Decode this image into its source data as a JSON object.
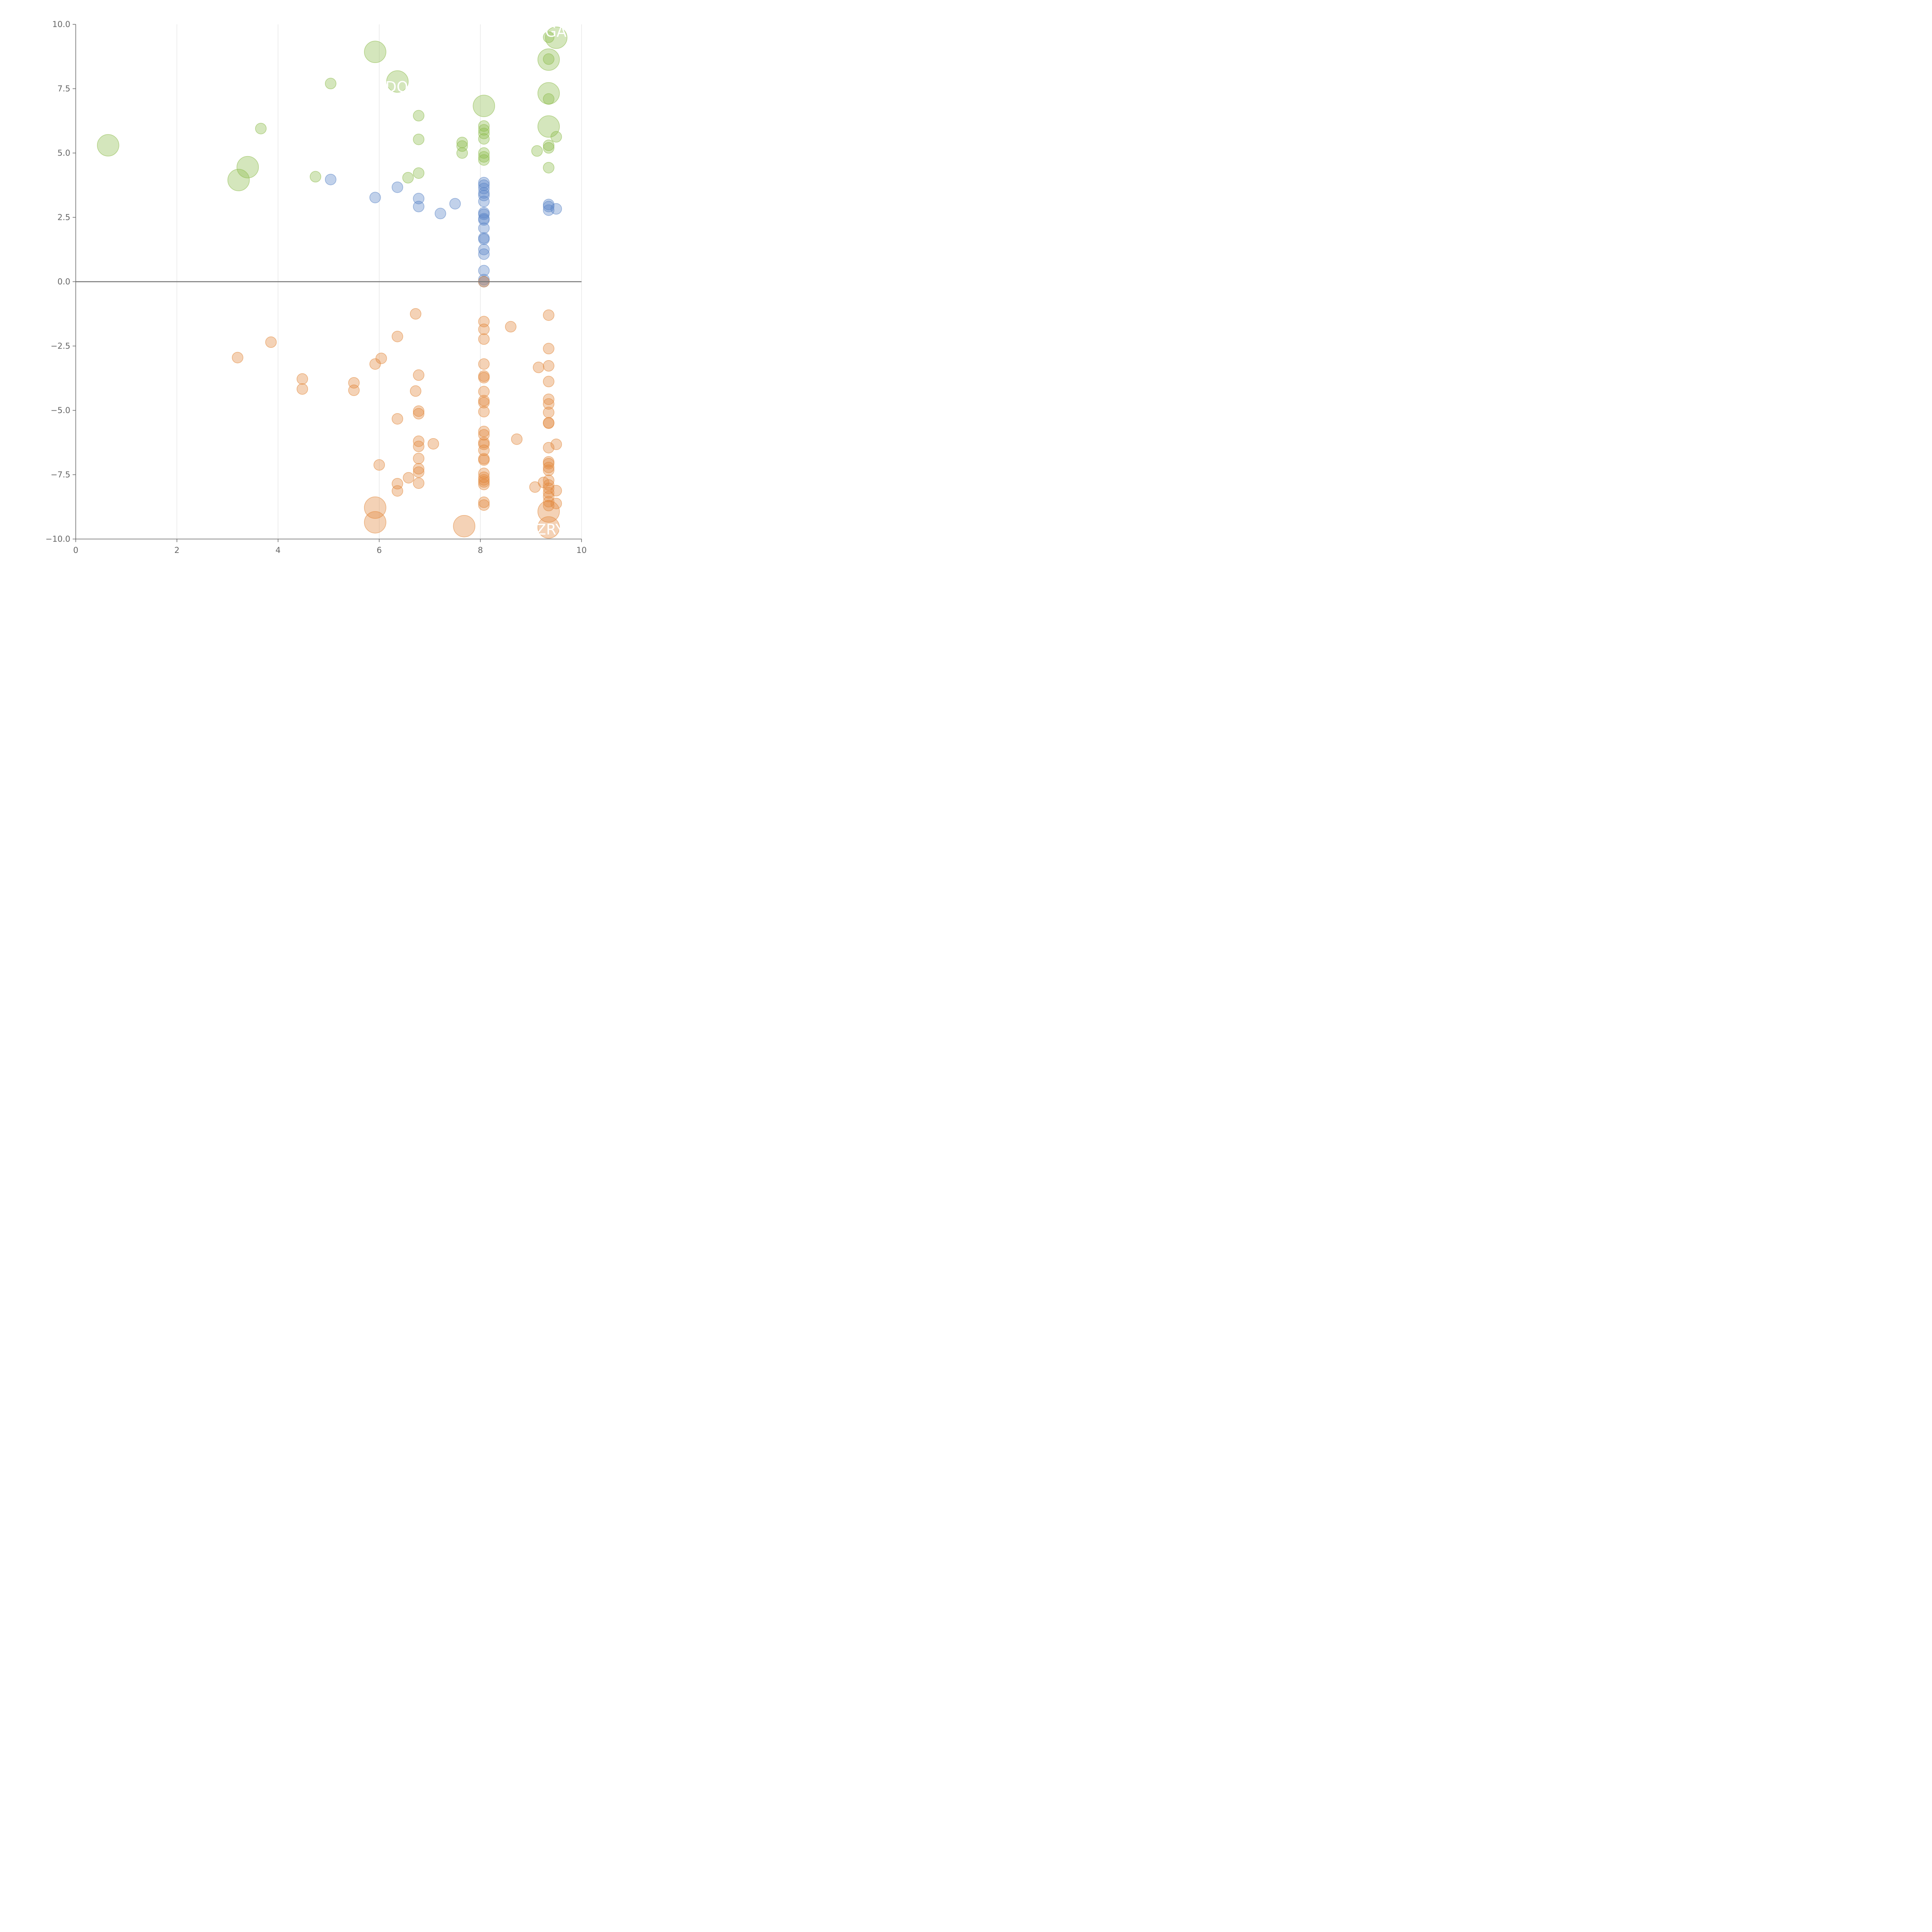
{
  "chart_data": {
    "type": "scatter",
    "title": "",
    "xlabel": "",
    "ylabel": "",
    "xlim": [
      0,
      10
    ],
    "ylim": [
      -10,
      10
    ],
    "x_ticks": [
      0,
      2,
      4,
      6,
      8,
      10
    ],
    "y_ticks": [
      -10,
      -7.5,
      -5,
      -2.5,
      0,
      2.5,
      5,
      7.5,
      10
    ],
    "x_tick_labels": [
      "0",
      "2",
      "4",
      "6",
      "8",
      "10"
    ],
    "y_tick_labels": [
      "−10.0",
      "−7.5",
      "−5.0",
      "−2.5",
      "0.0",
      "2.5",
      "5.0",
      "7.5",
      "10.0"
    ],
    "grid": "vertical",
    "zero_line": true,
    "colors": {
      "green": "#8fbc4f",
      "blue": "#5b86c7",
      "orange": "#e38a3e",
      "axis": "#666666",
      "grid": "#dddddd",
      "zero": "#777777"
    },
    "series": [
      {
        "color": "green",
        "points": [
          [
            0.64,
            5.3,
            2
          ],
          [
            3.22,
            3.95,
            2
          ],
          [
            3.4,
            4.45,
            2
          ],
          [
            3.66,
            5.95,
            1
          ],
          [
            4.74,
            4.08,
            1
          ],
          [
            5.04,
            7.7,
            1
          ],
          [
            5.92,
            8.93,
            2
          ],
          [
            6.36,
            7.78,
            2
          ],
          [
            6.57,
            4.04,
            1
          ],
          [
            6.78,
            6.45,
            1
          ],
          [
            6.78,
            5.53,
            1
          ],
          [
            6.78,
            4.22,
            1
          ],
          [
            7.64,
            5.41,
            1
          ],
          [
            7.64,
            5.27,
            1
          ],
          [
            7.64,
            5.0,
            1
          ],
          [
            8.07,
            6.83,
            2
          ],
          [
            8.07,
            6.05,
            1
          ],
          [
            8.07,
            5.9,
            1
          ],
          [
            8.07,
            5.76,
            1
          ],
          [
            8.07,
            5.55,
            1
          ],
          [
            8.07,
            5.0,
            1
          ],
          [
            8.07,
            4.85,
            1
          ],
          [
            8.07,
            4.73,
            1
          ],
          [
            9.12,
            5.08,
            1
          ],
          [
            9.35,
            9.5,
            1
          ],
          [
            9.35,
            8.63,
            2
          ],
          [
            9.35,
            8.65,
            1
          ],
          [
            9.35,
            7.32,
            2
          ],
          [
            9.35,
            7.1,
            1
          ],
          [
            9.35,
            6.03,
            2
          ],
          [
            9.35,
            5.3,
            1
          ],
          [
            9.35,
            5.2,
            1
          ],
          [
            9.35,
            4.43,
            1
          ],
          [
            9.5,
            9.48,
            2
          ],
          [
            9.5,
            5.63,
            1
          ]
        ]
      },
      {
        "color": "blue",
        "points": [
          [
            5.04,
            3.97,
            1
          ],
          [
            5.92,
            3.27,
            1
          ],
          [
            6.36,
            3.67,
            1
          ],
          [
            6.78,
            3.23,
            1
          ],
          [
            6.78,
            2.92,
            1
          ],
          [
            7.21,
            2.65,
            1
          ],
          [
            7.5,
            3.03,
            1
          ],
          [
            8.07,
            3.85,
            1
          ],
          [
            8.07,
            3.75,
            1
          ],
          [
            8.07,
            3.62,
            1
          ],
          [
            8.07,
            3.45,
            1
          ],
          [
            8.07,
            3.35,
            1
          ],
          [
            8.07,
            3.12,
            1
          ],
          [
            8.07,
            2.68,
            1
          ],
          [
            8.07,
            2.62,
            1
          ],
          [
            8.07,
            2.45,
            1
          ],
          [
            8.07,
            2.4,
            1
          ],
          [
            8.07,
            2.08,
            1
          ],
          [
            8.07,
            1.7,
            1
          ],
          [
            8.07,
            1.65,
            1
          ],
          [
            8.07,
            1.25,
            1
          ],
          [
            8.07,
            1.07,
            1
          ],
          [
            8.07,
            0.43,
            1
          ],
          [
            8.07,
            0.08,
            1
          ],
          [
            8.07,
            0.0,
            1
          ],
          [
            9.35,
            3.0,
            1
          ],
          [
            9.35,
            2.92,
            1
          ],
          [
            9.35,
            2.78,
            1
          ],
          [
            9.5,
            2.83,
            1
          ]
        ]
      },
      {
        "color": "orange",
        "points": [
          [
            3.2,
            -2.95,
            1
          ],
          [
            3.86,
            -2.35,
            1
          ],
          [
            4.48,
            -3.78,
            1
          ],
          [
            4.48,
            -4.17,
            1
          ],
          [
            5.5,
            -3.93,
            1
          ],
          [
            5.5,
            -4.22,
            1
          ],
          [
            5.92,
            -3.2,
            1
          ],
          [
            6.04,
            -2.98,
            1
          ],
          [
            6.0,
            -7.12,
            1
          ],
          [
            5.92,
            -8.78,
            2
          ],
          [
            5.92,
            -9.35,
            2
          ],
          [
            6.36,
            -2.13,
            1
          ],
          [
            6.36,
            -5.33,
            1
          ],
          [
            6.36,
            -7.85,
            1
          ],
          [
            6.36,
            -8.13,
            1
          ],
          [
            6.58,
            -7.62,
            1
          ],
          [
            6.72,
            -1.25,
            1
          ],
          [
            6.72,
            -4.25,
            1
          ],
          [
            6.78,
            -3.63,
            1
          ],
          [
            6.78,
            -5.03,
            1
          ],
          [
            6.78,
            -5.13,
            1
          ],
          [
            6.78,
            -6.2,
            1
          ],
          [
            6.78,
            -6.4,
            1
          ],
          [
            6.78,
            -6.87,
            1
          ],
          [
            6.78,
            -7.27,
            1
          ],
          [
            6.78,
            -7.4,
            1
          ],
          [
            6.78,
            -7.83,
            1
          ],
          [
            7.07,
            -6.3,
            1
          ],
          [
            7.68,
            -9.5,
            2
          ],
          [
            8.07,
            0.0,
            1
          ],
          [
            8.07,
            -1.55,
            1
          ],
          [
            8.07,
            -1.85,
            1
          ],
          [
            8.07,
            -2.23,
            1
          ],
          [
            8.07,
            -3.2,
            1
          ],
          [
            8.07,
            -3.67,
            1
          ],
          [
            8.07,
            -3.73,
            1
          ],
          [
            8.07,
            -4.27,
            1
          ],
          [
            8.07,
            -4.62,
            1
          ],
          [
            8.07,
            -4.7,
            1
          ],
          [
            8.07,
            -5.05,
            1
          ],
          [
            8.07,
            -5.82,
            1
          ],
          [
            8.07,
            -5.95,
            1
          ],
          [
            8.07,
            -6.25,
            1
          ],
          [
            8.07,
            -6.32,
            1
          ],
          [
            8.07,
            -6.55,
            1
          ],
          [
            8.07,
            -6.88,
            1
          ],
          [
            8.07,
            -6.93,
            1
          ],
          [
            8.07,
            -7.45,
            1
          ],
          [
            8.07,
            -7.6,
            1
          ],
          [
            8.07,
            -7.7,
            1
          ],
          [
            8.07,
            -7.78,
            1
          ],
          [
            8.07,
            -7.88,
            1
          ],
          [
            8.07,
            -8.57,
            1
          ],
          [
            8.07,
            -8.68,
            1
          ],
          [
            8.6,
            -1.75,
            1
          ],
          [
            8.72,
            -6.12,
            1
          ],
          [
            9.08,
            -7.98,
            1
          ],
          [
            9.15,
            -3.33,
            1
          ],
          [
            9.25,
            -7.8,
            1
          ],
          [
            9.35,
            -1.3,
            1
          ],
          [
            9.35,
            -2.6,
            1
          ],
          [
            9.35,
            -3.27,
            1
          ],
          [
            9.35,
            -3.88,
            1
          ],
          [
            9.35,
            -4.57,
            1
          ],
          [
            9.35,
            -4.75,
            1
          ],
          [
            9.35,
            -5.08,
            1
          ],
          [
            9.35,
            -5.48,
            1
          ],
          [
            9.35,
            -5.5,
            1
          ],
          [
            9.35,
            -6.45,
            1
          ],
          [
            9.35,
            -7.0,
            1
          ],
          [
            9.35,
            -7.07,
            1
          ],
          [
            9.35,
            -7.22,
            1
          ],
          [
            9.35,
            -7.33,
            1
          ],
          [
            9.35,
            -7.72,
            1
          ],
          [
            9.35,
            -7.9,
            1
          ],
          [
            9.35,
            -8.03,
            1
          ],
          [
            9.35,
            -8.2,
            1
          ],
          [
            9.35,
            -8.35,
            1
          ],
          [
            9.35,
            -8.55,
            1
          ],
          [
            9.35,
            -8.7,
            1
          ],
          [
            9.35,
            -8.93,
            2
          ],
          [
            9.35,
            -9.55,
            2
          ],
          [
            9.5,
            -6.32,
            1
          ],
          [
            9.5,
            -8.12,
            1
          ],
          [
            9.5,
            -8.62,
            1
          ]
        ]
      }
    ],
    "annotations": [
      {
        "text": "GA",
        "x": 9.28,
        "y": 9.7
      },
      {
        "text": "DO",
        "x": 6.12,
        "y": 7.55
      },
      {
        "text": "ZRY",
        "x": 9.1,
        "y": -9.65
      }
    ]
  }
}
